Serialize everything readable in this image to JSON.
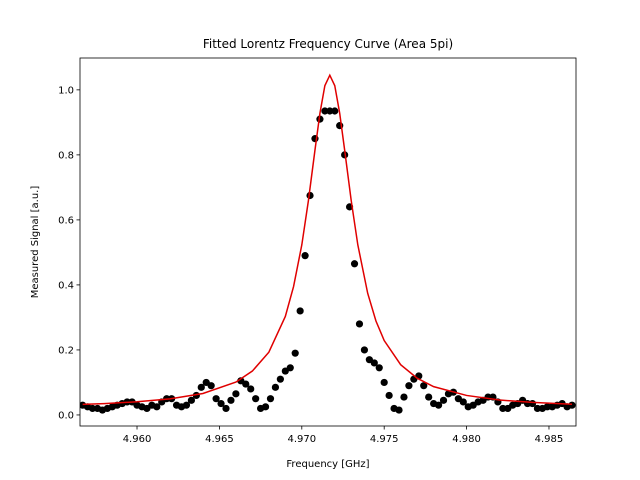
{
  "chart_data": {
    "type": "scatter-fit",
    "title": "Fitted Lorentz Frequency Curve (Area 5pi)",
    "x_label": "Frequency [GHz]",
    "y_label": "Measured Signal [a.u.]",
    "xlim": [
      4.95654,
      4.98664
    ],
    "ylim": [
      -0.034,
      1.098
    ],
    "xticks": [
      {
        "value": 4.96,
        "label": "4.960"
      },
      {
        "value": 4.965,
        "label": "4.965"
      },
      {
        "value": 4.97,
        "label": "4.970"
      },
      {
        "value": 4.975,
        "label": "4.975"
      },
      {
        "value": 4.98,
        "label": "4.980"
      },
      {
        "value": 4.985,
        "label": "4.985"
      }
    ],
    "yticks": [
      {
        "value": 0,
        "label": "0.0"
      },
      0.2,
      0.4,
      0.6,
      0.8,
      {
        "value": 1,
        "label": "1.0"
      }
    ],
    "series": [
      {
        "kind": "points",
        "color": "#000000",
        "x": [
          4.9567,
          4.957,
          4.9573,
          4.9576,
          4.9579,
          4.9582,
          4.9585,
          4.9588,
          4.9591,
          4.9594,
          4.9597,
          4.96,
          4.9603,
          4.9606,
          4.9609,
          4.9612,
          4.9615,
          4.9618,
          4.9621,
          4.9624,
          4.9627,
          4.963,
          4.9633,
          4.9636,
          4.9639,
          4.9642,
          4.9645,
          4.9648,
          4.9651,
          4.9654,
          4.9657,
          4.966,
          4.9663,
          4.9666,
          4.9669,
          4.9672,
          4.9675,
          4.9678,
          4.9681,
          4.9684,
          4.9687,
          4.969,
          4.9693,
          4.9696,
          4.9699,
          4.9702,
          4.9705,
          4.9708,
          4.9711,
          4.9714,
          4.9717,
          4.972,
          4.9723,
          4.9726,
          4.9729,
          4.9732,
          4.9735,
          4.9738,
          4.9741,
          4.9744,
          4.9747,
          4.975,
          4.9753,
          4.9756,
          4.9759,
          4.9762,
          4.9765,
          4.9768,
          4.9771,
          4.9774,
          4.9777,
          4.978,
          4.9783,
          4.9786,
          4.9789,
          4.9792,
          4.9795,
          4.9798,
          4.9801,
          4.9804,
          4.9807,
          4.981,
          4.9813,
          4.9816,
          4.9819,
          4.9822,
          4.9825,
          4.9828,
          4.9831,
          4.9834,
          4.9837,
          4.984,
          4.9843,
          4.9846,
          4.9849,
          4.9852,
          4.9855,
          4.9858,
          4.9861,
          4.9864
        ],
        "values": [
          0.03,
          0.025,
          0.02,
          0.02,
          0.015,
          0.02,
          0.025,
          0.03,
          0.035,
          0.04,
          0.04,
          0.03,
          0.025,
          0.02,
          0.03,
          0.025,
          0.04,
          0.05,
          0.05,
          0.03,
          0.025,
          0.03,
          0.045,
          0.06,
          0.085,
          0.1,
          0.09,
          0.05,
          0.035,
          0.02,
          0.045,
          0.065,
          0.105,
          0.095,
          0.08,
          0.05,
          0.02,
          0.025,
          0.05,
          0.085,
          0.11,
          0.135,
          0.145,
          0.19,
          0.32,
          0.49,
          0.675,
          0.85,
          0.91,
          0.935,
          0.935,
          0.935,
          0.89,
          0.8,
          0.64,
          0.465,
          0.28,
          0.2,
          0.17,
          0.16,
          0.145,
          0.1,
          0.06,
          0.02,
          0.015,
          0.055,
          0.09,
          0.11,
          0.12,
          0.09,
          0.055,
          0.035,
          0.03,
          0.045,
          0.065,
          0.07,
          0.05,
          0.04,
          0.025,
          0.03,
          0.04,
          0.045,
          0.055,
          0.055,
          0.04,
          0.02,
          0.02,
          0.03,
          0.035,
          0.045,
          0.035,
          0.035,
          0.02,
          0.02,
          0.025,
          0.025,
          0.03,
          0.035,
          0.025,
          0.03
        ]
      },
      {
        "kind": "line",
        "color": "#e00000",
        "x": [
          4.9567,
          4.958,
          4.96,
          4.962,
          4.964,
          4.966,
          4.967,
          4.968,
          4.969,
          4.9695,
          4.97,
          4.9704,
          4.9708,
          4.9711,
          4.9714,
          4.9717,
          4.972,
          4.9723,
          4.9726,
          4.973,
          4.9734,
          4.974,
          4.9745,
          4.975,
          4.976,
          4.977,
          4.978,
          4.98,
          4.982,
          4.984,
          4.9864
        ],
        "values": [
          0.0325,
          0.035,
          0.0405,
          0.0495,
          0.066,
          0.101,
          0.135,
          0.193,
          0.303,
          0.395,
          0.523,
          0.659,
          0.815,
          0.928,
          1.013,
          1.045,
          1.013,
          0.928,
          0.815,
          0.659,
          0.523,
          0.374,
          0.289,
          0.229,
          0.1545,
          0.113,
          0.087,
          0.06,
          0.046,
          0.0385,
          0.033
        ]
      }
    ]
  }
}
